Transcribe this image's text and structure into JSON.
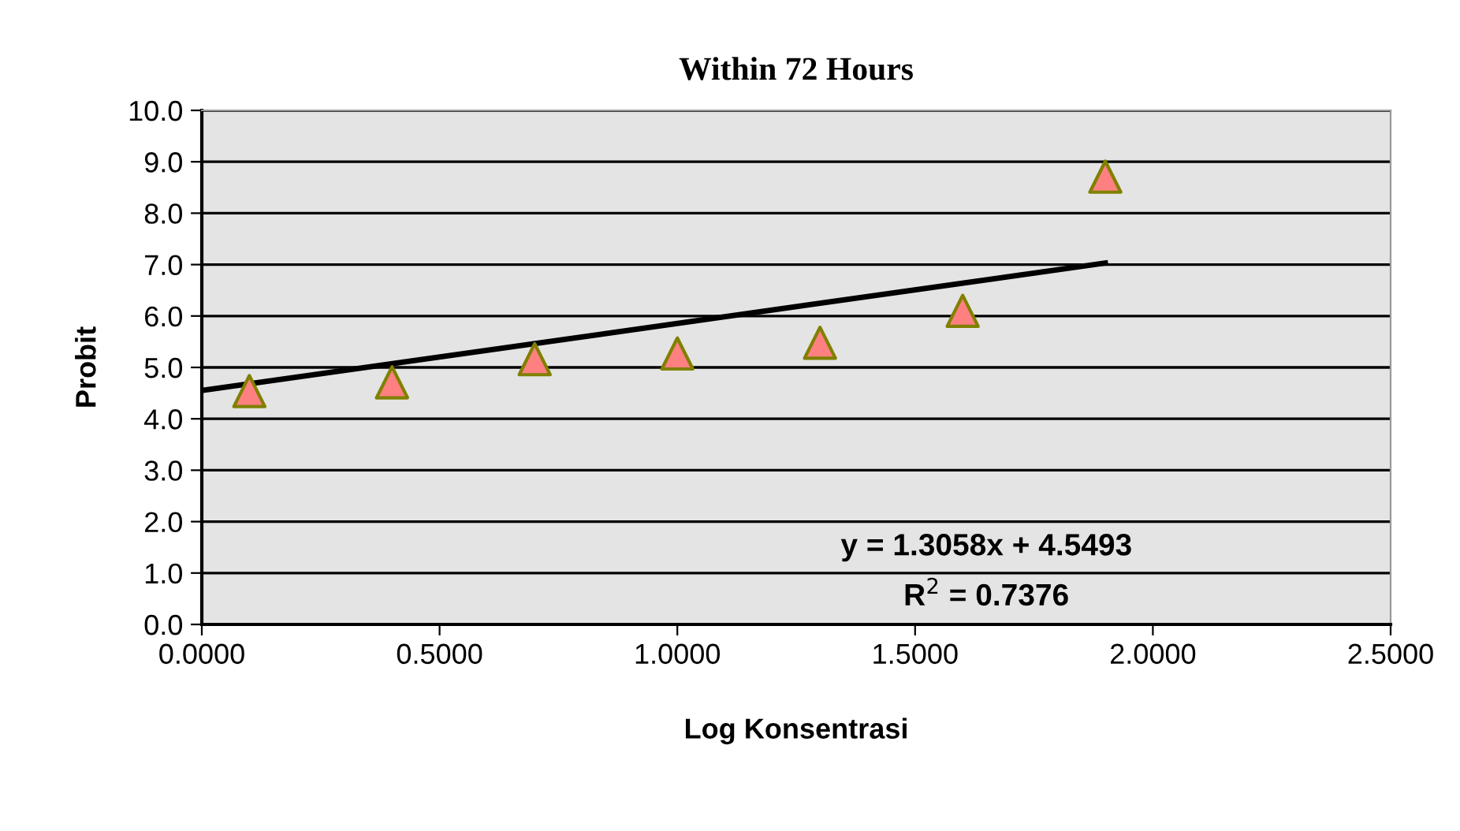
{
  "chart_data": {
    "type": "scatter",
    "title": "Within 72 Hours",
    "xlabel": "Log Konsentrasi",
    "ylabel": "Probit",
    "series": [
      {
        "color": "#ff8080",
        "marker": "triangle",
        "x": [
          0.1,
          0.4,
          0.7,
          1.0,
          1.3,
          1.6,
          1.9
        ],
        "values": [
          4.54,
          4.71,
          5.16,
          5.27,
          5.48,
          6.1,
          8.71
        ]
      },
      {
        "type": "line",
        "color": "#000000",
        "x": [
          0.0,
          1.9
        ],
        "values": [
          4.55,
          7.03
        ]
      }
    ],
    "annotations": [
      "y = 1.3058x + 4.5493",
      "R$^{2}$ = 0.7376"
    ],
    "xlim": [
      0,
      2.5
    ],
    "xticks": [
      {
        "value": 0,
        "label": "0.0000"
      },
      {
        "value": 0.5,
        "label": "0.5000"
      },
      {
        "value": 1.0,
        "label": "1.0000"
      },
      {
        "value": 1.5,
        "label": "1.5000"
      },
      {
        "value": 2.0,
        "label": "2.0000"
      },
      {
        "value": 2.5,
        "label": "2.5000"
      }
    ],
    "ylim": [
      0,
      10
    ],
    "yticks": [
      {
        "value": 0,
        "label": "0.0"
      },
      {
        "value": 1,
        "label": "1.0"
      },
      {
        "value": 2,
        "label": "2.0"
      },
      {
        "value": 3,
        "label": "3.0"
      },
      {
        "value": 4,
        "label": "4.0"
      },
      {
        "value": 5,
        "label": "5.0"
      },
      {
        "value": 6,
        "label": "6.0"
      },
      {
        "value": 7,
        "label": "7.0"
      },
      {
        "value": 8,
        "label": "8.0"
      },
      {
        "value": 9,
        "label": "9.0"
      },
      {
        "value": 10,
        "label": "10.0"
      }
    ],
    "grid": "y"
  }
}
